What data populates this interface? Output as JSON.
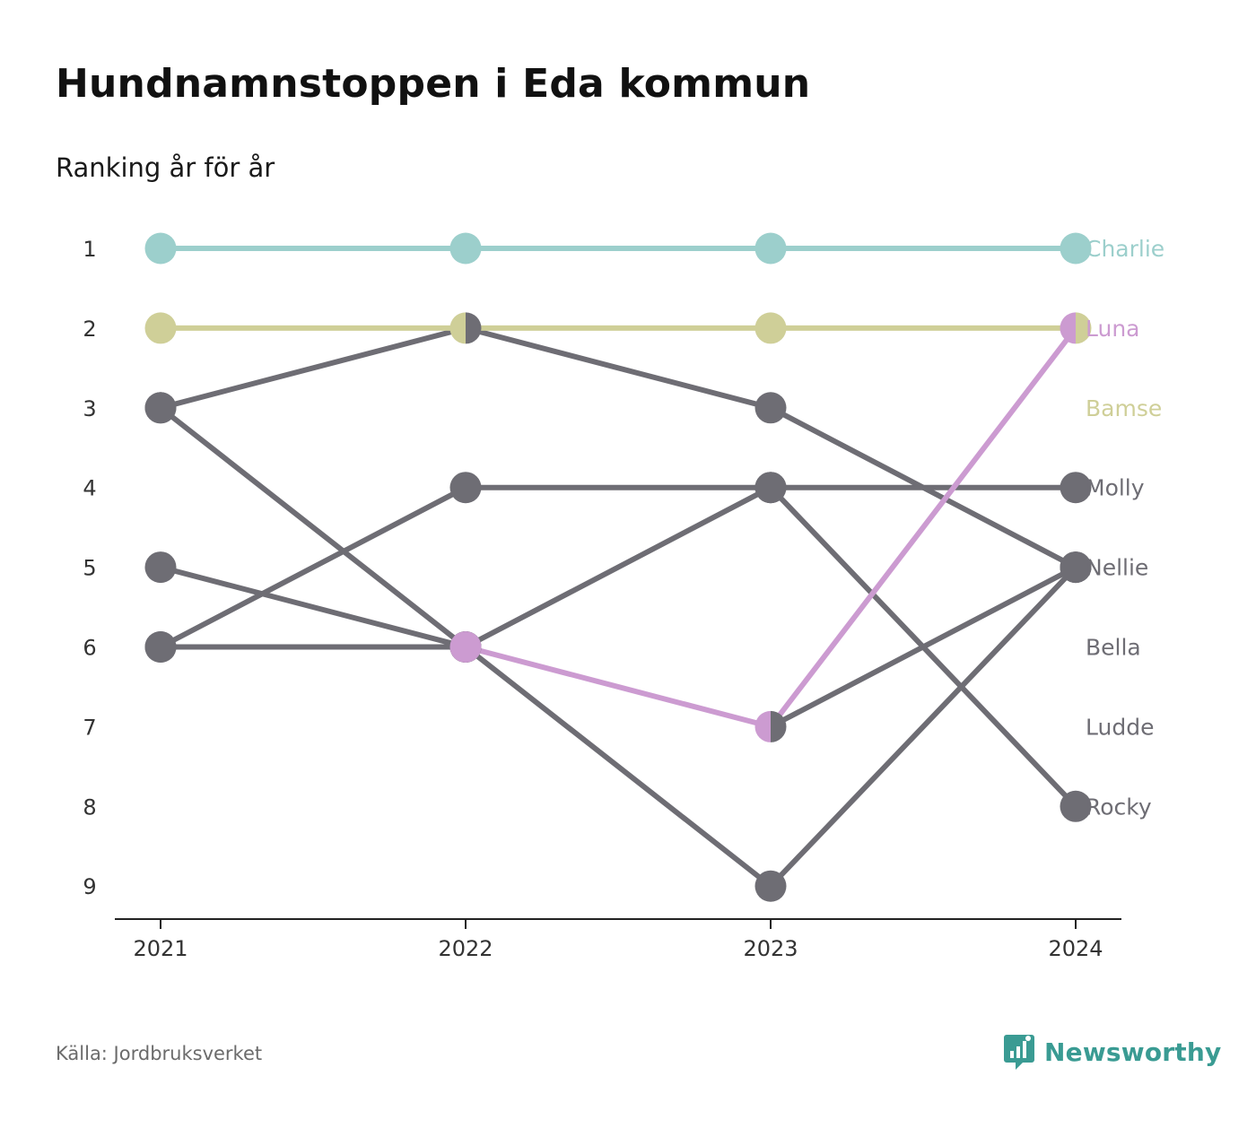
{
  "title": "Hundnamnstoppen i Eda kommun",
  "subtitle": "Ranking år för år",
  "source": "Källa: Jordbruksverket",
  "brand": "Newsworthy",
  "colors": {
    "highlight_teal": "#9ccfcc",
    "highlight_olive": "#cfcf98",
    "highlight_pink": "#cc9bd1",
    "neutral": "#6e6d74",
    "brand": "#3a9b93"
  },
  "chart_data": {
    "type": "line",
    "x": [
      "2021",
      "2022",
      "2023",
      "2024"
    ],
    "y_ticks": [
      "1",
      "2",
      "3",
      "4",
      "5",
      "6",
      "7",
      "8",
      "9"
    ],
    "ylim": [
      1,
      9
    ],
    "y_inverted": true,
    "grid": false,
    "series": [
      {
        "name": "Molly",
        "color": "#6e6d74",
        "values": [
          6,
          4,
          4,
          4
        ]
      },
      {
        "name": "Nellie",
        "color": "#6e6d74",
        "values": [
          3,
          2,
          3,
          5
        ]
      },
      {
        "name": "Bella",
        "color": "#6e6d74",
        "values": [
          5,
          6,
          null,
          null
        ]
      },
      {
        "name": "Ludde",
        "color": "#6e6d74",
        "values": [
          6,
          6,
          4,
          8
        ]
      },
      {
        "name": "Rocky",
        "color": "#6e6d74",
        "values": [
          3,
          6,
          9,
          5
        ]
      },
      {
        "name": "",
        "color": "#6e6d74",
        "values": [
          null,
          null,
          7,
          5
        ]
      },
      {
        "name": "Charlie",
        "color": "#9ccfcc",
        "values": [
          1,
          1,
          1,
          1
        ]
      },
      {
        "name": "Bamse",
        "color": "#cfcf98",
        "values": [
          2,
          2,
          2,
          2
        ]
      },
      {
        "name": "Luna",
        "color": "#cc9bd1",
        "values": [
          null,
          6,
          7,
          2
        ]
      }
    ],
    "end_labels": [
      {
        "name": "Charlie",
        "rank": 1,
        "color": "#9ccfcc"
      },
      {
        "name": "Luna",
        "rank": 2,
        "color": "#cc9bd1"
      },
      {
        "name": "Bamse",
        "rank": 3,
        "color": "#cfcf98"
      },
      {
        "name": "Molly",
        "rank": 4,
        "color": "#6e6d74"
      },
      {
        "name": "Nellie",
        "rank": 5,
        "color": "#6e6d74"
      },
      {
        "name": "Bella",
        "rank": 6,
        "color": "#6e6d74"
      },
      {
        "name": "Ludde",
        "rank": 7,
        "color": "#6e6d74"
      },
      {
        "name": "Rocky",
        "rank": 8,
        "color": "#6e6d74"
      }
    ],
    "split_markers": [
      {
        "x": "2022",
        "rank": 2,
        "left": "#cfcf98",
        "right": "#6e6d74"
      },
      {
        "x": "2023",
        "rank": 7,
        "left": "#cc9bd1",
        "right": "#6e6d74"
      },
      {
        "x": "2024",
        "rank": 2,
        "left": "#cc9bd1",
        "right": "#cfcf98"
      }
    ]
  }
}
